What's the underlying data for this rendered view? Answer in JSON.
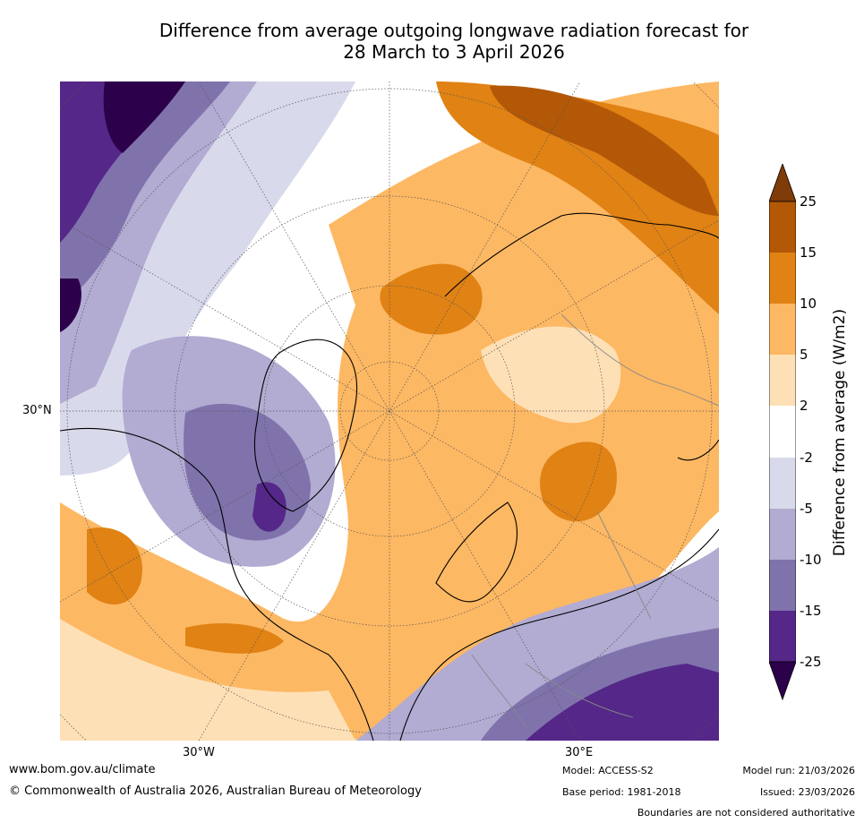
{
  "title": {
    "line1": "Difference from average outgoing longwave radiation forecast for",
    "line2": "28 March to 3 April 2026"
  },
  "map": {
    "projection": "north-polar-stereographic",
    "axis_labels": {
      "left": "30°N",
      "bottom_left": "30°W",
      "bottom_right": "30°E"
    }
  },
  "colorbar": {
    "label": "Difference from average (W/m2)",
    "ticks": [
      "25",
      "15",
      "10",
      "5",
      "2",
      "-2",
      "-5",
      "-10",
      "-15",
      "-25"
    ],
    "colors": [
      "#7f3b08",
      "#b35806",
      "#e08214",
      "#fdb863",
      "#fee0b6",
      "#ffffff",
      "#d8daeb",
      "#b2abd2",
      "#8073ac",
      "#542788",
      "#2d004b"
    ]
  },
  "footer": {
    "website": "www.bom.gov.au/climate",
    "copyright": "© Commonwealth of Australia 2026, Australian Bureau of Meteorology",
    "model": "Model: ACCESS-S2",
    "base_period": "Base period: 1981-2018",
    "model_run": "Model run: 21/03/2026",
    "issued": "Issued: 23/03/2026",
    "disclaimer": "Boundaries are not considered authoritative"
  }
}
